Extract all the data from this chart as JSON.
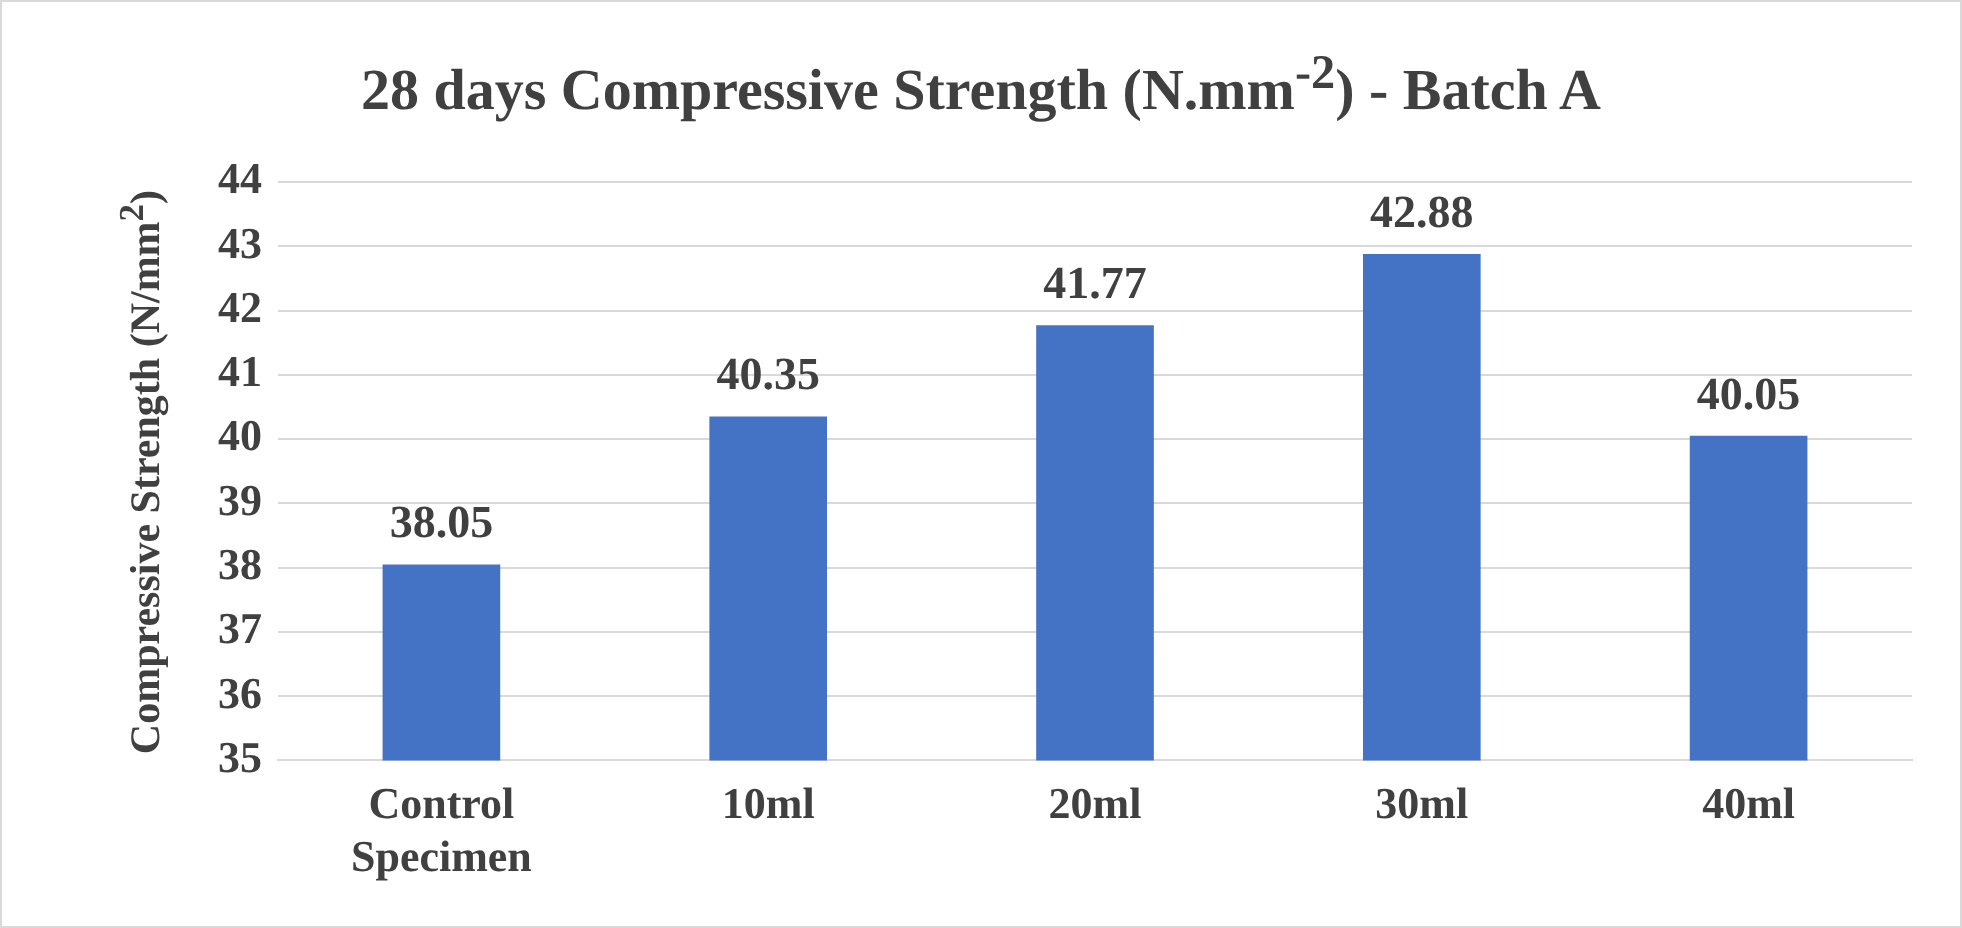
{
  "chart_data": {
    "type": "bar",
    "title": "28 days Compressive Strength (N.mm$^{-2}$) - Batch A",
    "ylabel": "Compressive Strength (N/mm$^{2}$)",
    "categories": [
      "Control Specimen",
      "10ml",
      "20ml",
      "30ml",
      "40ml"
    ],
    "values": [
      38.05,
      40.35,
      41.77,
      42.88,
      40.05
    ],
    "color": "#4472c4",
    "ylim": [
      35,
      44
    ],
    "yticks": [
      35,
      36,
      37,
      38,
      39,
      40,
      41,
      42,
      43,
      44
    ],
    "grid": "y",
    "data_labels": true
  }
}
